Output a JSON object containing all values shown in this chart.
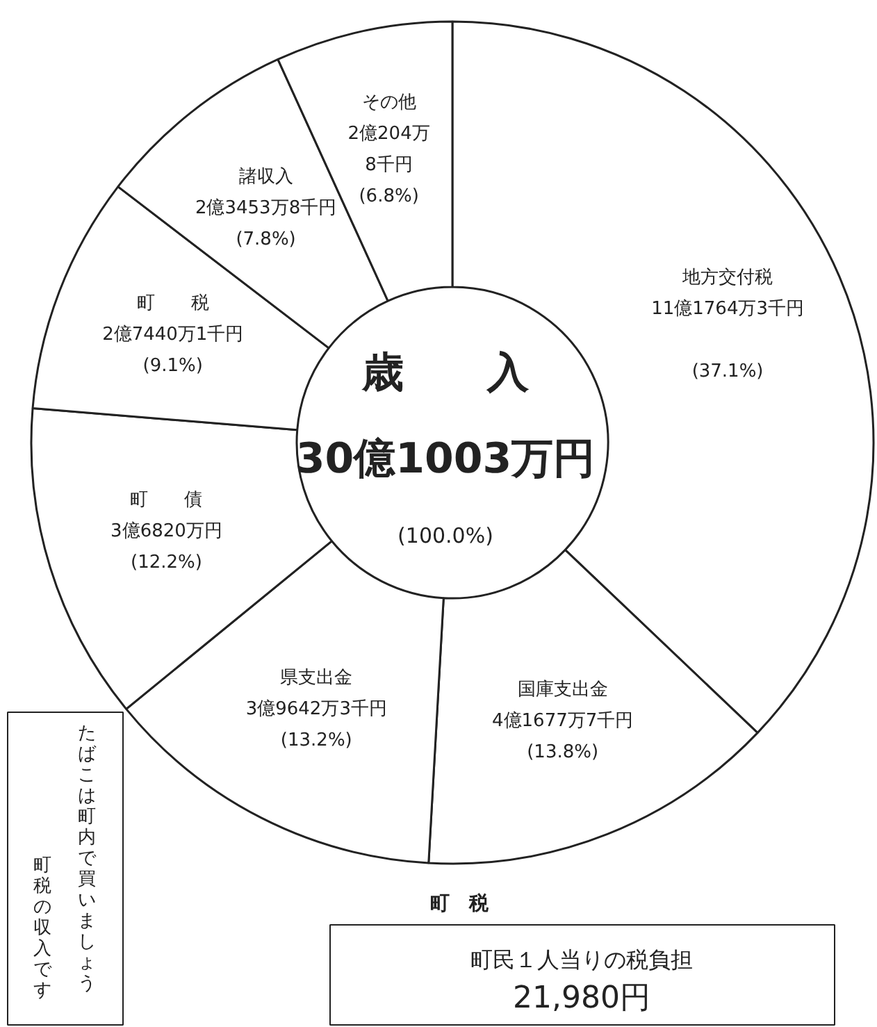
{
  "chart_data": {
    "type": "donut",
    "categories": [
      "地方交付税",
      "国庫支出金",
      "県支出金",
      "町　　債",
      "町　　税",
      "諸収入",
      "その他"
    ],
    "values": [
      37.1,
      13.8,
      13.2,
      12.2,
      9.1,
      7.8,
      6.8
    ],
    "colors": [
      "#ffffff",
      "#ffffff",
      "#ffffff",
      "#ffffff",
      "#ffffff",
      "#ffffff",
      "#ffffff"
    ],
    "value_labels": [
      "11億1764万3千円\n\n(37.1%)",
      "4億1677万7千円\n(13.8%)",
      "3億9642万3千円\n(13.2%)",
      "3億6820万円\n(12.2%)",
      "2億7440万1千円\n(9.1%)",
      "2億3453万8千円\n(7.8%)",
      "2億204万\n8千円\n(6.8%)"
    ],
    "annotations": [
      "歳　　入",
      "30億1003万円",
      "(100.0%)",
      "たばこは町内で買いましょう",
      "町税の収入です",
      "町　税",
      "町民１人当りの税負担",
      "21,980円"
    ]
  }
}
